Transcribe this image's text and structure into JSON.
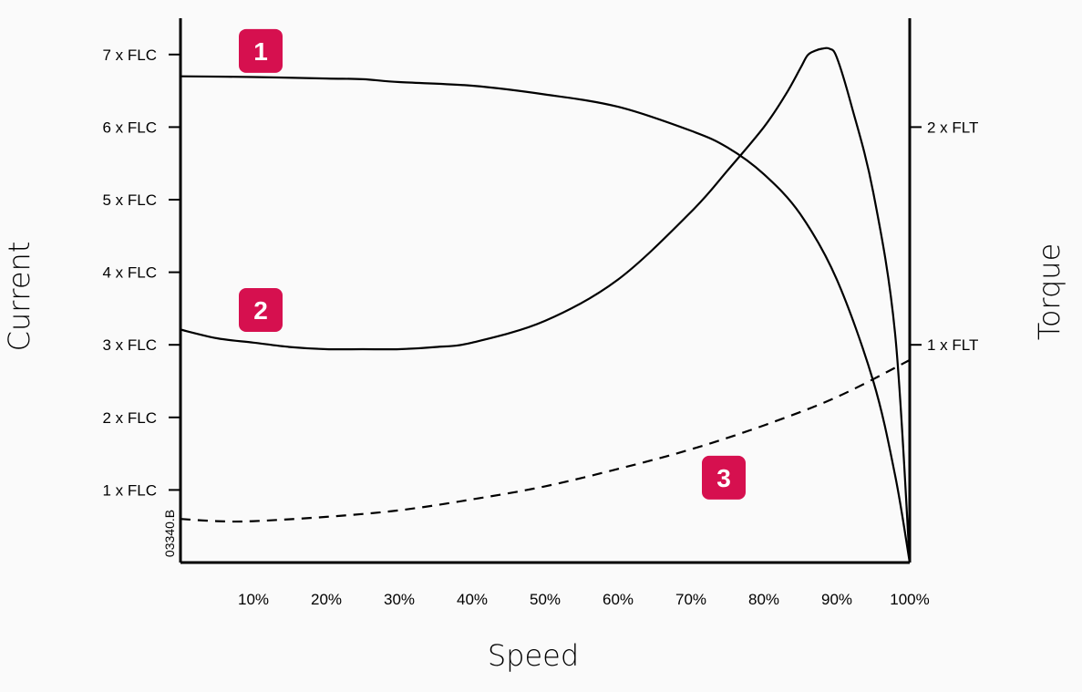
{
  "chart_data": {
    "type": "line",
    "figure_id": "03340.B",
    "xlabel": "Speed",
    "ylabel_left": "Current",
    "ylabel_right": "Torque",
    "x_ticks": [
      {
        "value": 10,
        "label": "10%"
      },
      {
        "value": 20,
        "label": "20%"
      },
      {
        "value": 30,
        "label": "30%"
      },
      {
        "value": 40,
        "label": "40%"
      },
      {
        "value": 50,
        "label": "50%"
      },
      {
        "value": 60,
        "label": "60%"
      },
      {
        "value": 70,
        "label": "70%"
      },
      {
        "value": 80,
        "label": "80%"
      },
      {
        "value": 90,
        "label": "90%"
      },
      {
        "value": 100,
        "label": "100%"
      }
    ],
    "y_left_ticks": [
      {
        "value": 1,
        "label": "1 x FLC"
      },
      {
        "value": 2,
        "label": "2 x FLC"
      },
      {
        "value": 3,
        "label": "3 x FLC"
      },
      {
        "value": 4,
        "label": "4 x FLC"
      },
      {
        "value": 5,
        "label": "5 x FLC"
      },
      {
        "value": 6,
        "label": "6 x FLC"
      },
      {
        "value": 7,
        "label": "7 x FLC"
      }
    ],
    "y_right_ticks": [
      {
        "value": 1,
        "label": "1 x FLT"
      },
      {
        "value": 2,
        "label": "2 x FLT"
      }
    ],
    "xlim": [
      0,
      100
    ],
    "ylim_left": [
      0,
      7.5
    ],
    "ylim_right": [
      0,
      2.5
    ],
    "grid": false,
    "series": [
      {
        "marker": "1",
        "axis": "left",
        "style": "solid",
        "x": [
          0,
          10,
          20,
          25,
          30,
          40,
          50,
          60,
          70,
          75,
          80,
          85,
          90,
          95,
          98,
          100
        ],
        "y": [
          6.7,
          6.69,
          6.67,
          6.66,
          6.62,
          6.57,
          6.45,
          6.28,
          5.95,
          5.72,
          5.35,
          4.8,
          3.9,
          2.5,
          1.2,
          0
        ]
      },
      {
        "marker": "2",
        "axis": "right",
        "style": "solid",
        "x": [
          0,
          5,
          10,
          15,
          20,
          25,
          30,
          35,
          40,
          50,
          60,
          70,
          75,
          80,
          83,
          85,
          86,
          87,
          88,
          89,
          90,
          92,
          95,
          98,
          100
        ],
        "y": [
          1.07,
          1.03,
          1.01,
          0.99,
          0.98,
          0.98,
          0.98,
          0.99,
          1.01,
          1.11,
          1.3,
          1.61,
          1.8,
          2.0,
          2.15,
          2.27,
          2.33,
          2.35,
          2.36,
          2.36,
          2.32,
          2.1,
          1.7,
          1.05,
          0
        ]
      },
      {
        "marker": "3",
        "axis": "right",
        "style": "dashed",
        "x": [
          0,
          5,
          10,
          20,
          30,
          40,
          50,
          60,
          70,
          80,
          90,
          100
        ],
        "y": [
          0.2,
          0.19,
          0.19,
          0.21,
          0.24,
          0.29,
          0.35,
          0.43,
          0.52,
          0.63,
          0.76,
          0.93
        ]
      }
    ],
    "markers": [
      {
        "label": "1",
        "x": 11,
        "y_left": 7.05
      },
      {
        "label": "2",
        "x": 11,
        "y_left": 3.48
      },
      {
        "label": "3",
        "x": 74.5,
        "y_left": 1.17
      }
    ]
  },
  "colors": {
    "line": "#000000",
    "marker_bg": "#d6104f",
    "marker_text": "#ffffff",
    "background": "#fafafa"
  }
}
